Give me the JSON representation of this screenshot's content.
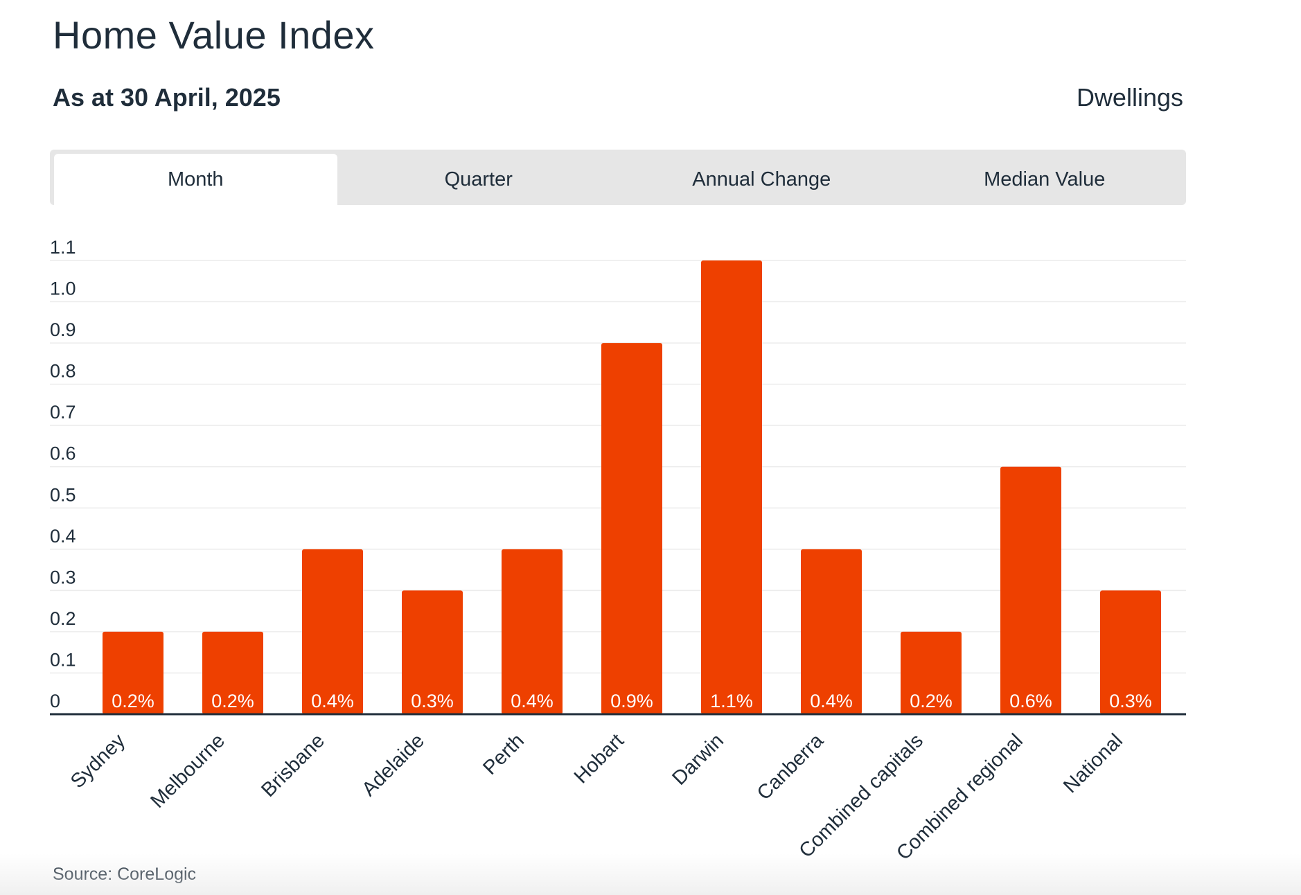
{
  "header": {
    "title": "Home Value Index",
    "subtitle": "As at 30 April, 2025",
    "measure": "Dwellings"
  },
  "tabs": [
    {
      "label": "Month",
      "active": true
    },
    {
      "label": "Quarter",
      "active": false
    },
    {
      "label": "Annual Change",
      "active": false
    },
    {
      "label": "Median Value",
      "active": false
    }
  ],
  "footer": {
    "source": "Source: CoreLogic"
  },
  "colors": {
    "bar": "#ee4000",
    "axis": "#1f2d3a",
    "grid": "#ececec"
  },
  "chart_data": {
    "type": "bar",
    "categories": [
      "Sydney",
      "Melbourne",
      "Brisbane",
      "Adelaide",
      "Perth",
      "Hobart",
      "Darwin",
      "Canberra",
      "Combined capitals",
      "Combined regional",
      "National"
    ],
    "values": [
      0.2,
      0.2,
      0.4,
      0.3,
      0.4,
      0.9,
      1.1,
      0.4,
      0.2,
      0.6,
      0.3
    ],
    "data_labels": [
      "0.2%",
      "0.2%",
      "0.4%",
      "0.3%",
      "0.4%",
      "0.9%",
      "1.1%",
      "0.4%",
      "0.2%",
      "0.6%",
      "0.3%"
    ],
    "yticks": [
      "0",
      "0.1",
      "0.2",
      "0.3",
      "0.4",
      "0.5",
      "0.6",
      "0.7",
      "0.8",
      "0.9",
      "1.0",
      "1.1"
    ],
    "ylim": [
      0,
      1.1
    ],
    "grid": true,
    "legend": "none"
  }
}
